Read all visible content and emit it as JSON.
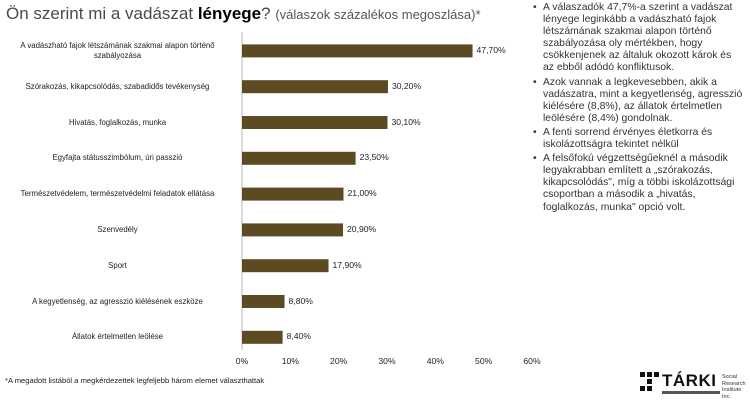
{
  "title": {
    "part1": "Ön szerint mi a vadászat ",
    "bold": "lényege",
    "part2": "? ",
    "sub": "(válaszok százalékos megoszlása)*"
  },
  "chart_data": {
    "type": "bar",
    "orientation": "horizontal",
    "categories": [
      "A vadászható fajok létszámának szakmai alapon történő szabályozása",
      "Szórakozás, kikapcsolódás, szabadidős tevékenység",
      "Hivatás, foglalkozás, munka",
      "Egyfajta státusszimbólum, úri passzió",
      "Természetvédelem, természetvédelmi feladatok ellátása",
      "Szenvedély",
      "Sport",
      "A kegyetlenség, az agresszió kiélésének eszköze",
      "Állatok értelmetlen leölése"
    ],
    "values": [
      47.7,
      30.2,
      30.1,
      23.5,
      21.0,
      20.9,
      17.9,
      8.8,
      8.4
    ],
    "value_labels": [
      "47,70%",
      "30,20%",
      "30,10%",
      "23,50%",
      "21,00%",
      "20,90%",
      "17,90%",
      "8,80%",
      "8,40%"
    ],
    "xlim": [
      0,
      60
    ],
    "xticks": [
      "0%",
      "10%",
      "20%",
      "30%",
      "40%",
      "50%",
      "60%"
    ],
    "color": "#5c4a22",
    "grid": false
  },
  "footnote": "*A megadott listából a megkérdezettek legfeljebb három elemet választhattak",
  "bullets": [
    "A válaszadók 47,7%-a szerint a vadászat lényege leginkább a vadászható fajok létszámának szakmai alapon történő szabályozása oly mértékben, hogy csökkenjenek az általuk okozott károk és az ebből adódó konfliktusok.",
    "Azok vannak a legkevesebben, akik a vadászatra, mint a kegyetlenség, agresszió kiélésére (8,8%), az állatok értelmetlen leölésére (8,4%) gondolnak.",
    "A fenti sorrend érvényes életkorra és iskolázottságra tekintet nélkül",
    "A felsőfokú végzettségűeknél  a második legyakrabban említett a „szórakozás, kikapcsolódás\", míg a többi iskolázottsági csoportban a második a „hivatás, foglalkozás, munka\" opció volt."
  ],
  "logo": {
    "name": "TÁRKI",
    "small": [
      "Social",
      "Research",
      "Institute Inc."
    ]
  }
}
